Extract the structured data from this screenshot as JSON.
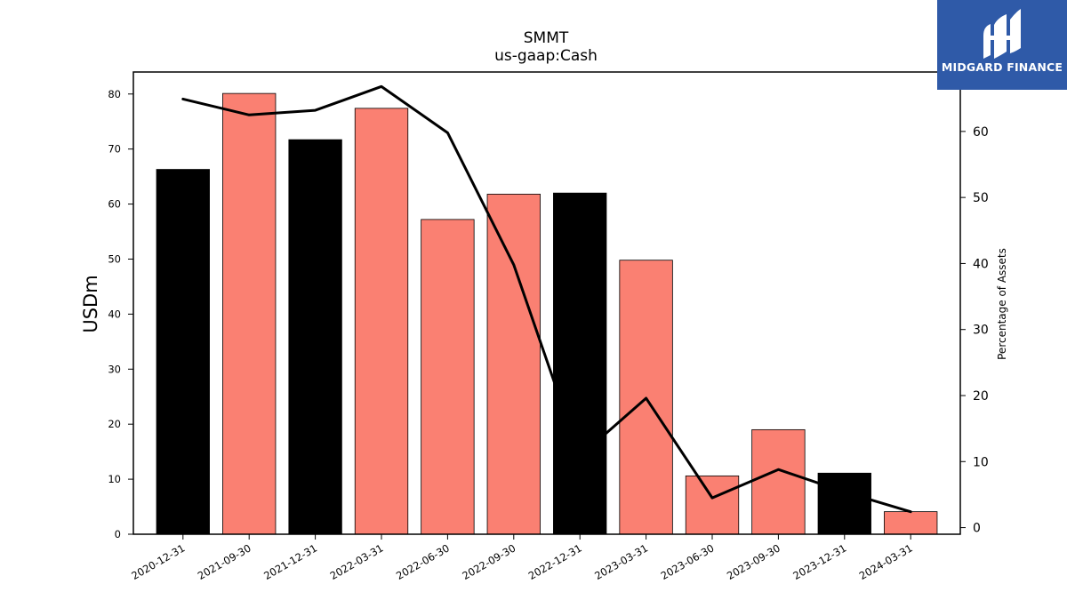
{
  "logo": {
    "brand": "MIDGARD FINANCE",
    "background": "#2f5aa8"
  },
  "colors": {
    "bar_primary": "#000000",
    "bar_secondary": "#fa8072",
    "line": "#000000"
  },
  "chart_data": {
    "type": "bar",
    "title": "SMMT",
    "subtitle": "us-gaap:Cash",
    "ylabel": "USDm",
    "y2label": "Percentage of Assets",
    "ylim": [
      0,
      84
    ],
    "y2lim": [
      -1,
      69
    ],
    "yticks": [
      0,
      10,
      20,
      30,
      40,
      50,
      60,
      70,
      80
    ],
    "y2ticks": [
      0,
      10,
      20,
      30,
      40,
      50,
      60
    ],
    "categories": [
      "2020-12-31",
      "2021-09-30",
      "2021-12-31",
      "2022-03-31",
      "2022-06-30",
      "2022-09-30",
      "2022-12-31",
      "2023-03-31",
      "2023-06-30",
      "2023-09-30",
      "2023-12-31",
      "2024-03-31"
    ],
    "series": [
      {
        "axis": "left",
        "kind": "bar",
        "values": [
          66.3,
          80.1,
          71.7,
          77.4,
          57.2,
          61.8,
          62.0,
          49.8,
          10.6,
          19.0,
          11.1,
          4.1
        ],
        "colors": [
          "#000000",
          "#fa8072",
          "#000000",
          "#fa8072",
          "#fa8072",
          "#fa8072",
          "#000000",
          "#fa8072",
          "#fa8072",
          "#fa8072",
          "#000000",
          "#fa8072"
        ]
      },
      {
        "axis": "right",
        "kind": "line",
        "values": [
          64.9,
          62.5,
          63.2,
          66.8,
          59.8,
          39.8,
          10.8,
          19.6,
          4.5,
          8.8,
          5.4,
          2.4
        ]
      }
    ]
  }
}
